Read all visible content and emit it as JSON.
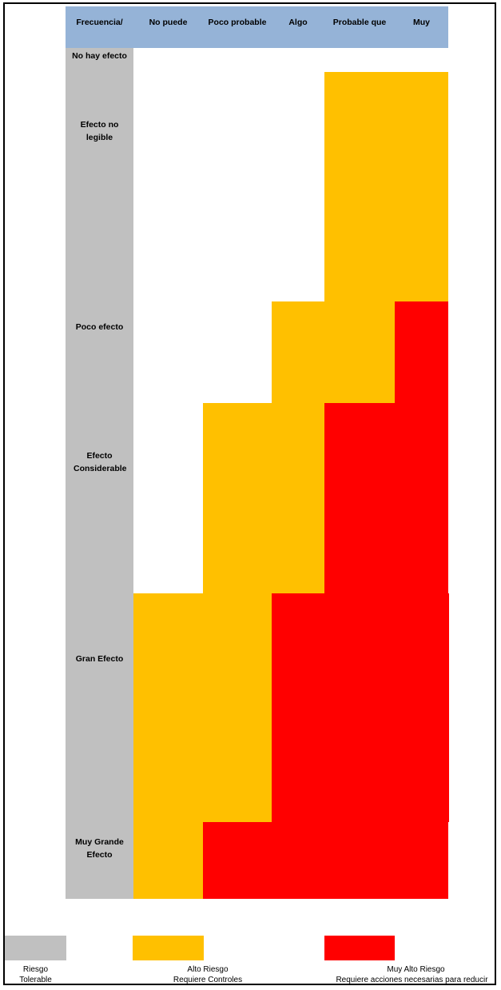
{
  "columns": [
    "Frecuencia/",
    "No puede",
    "Poco probable",
    "Algo",
    "Probable que",
    "Muy"
  ],
  "rows": [
    "No hay efecto",
    "Efecto no legible",
    "Poco efecto",
    "Efecto Considerable",
    "Gran Efecto",
    "Muy Grande Efecto"
  ],
  "colors": {
    "header": "#95b3d7",
    "tolerable": "#c0c0c0",
    "alto": "#ffc000",
    "muy_alto": "#ff0000"
  },
  "legend": {
    "tolerable": {
      "line1": "Riesgo",
      "line2": "Tolerable"
    },
    "alto": {
      "line1": "Alto Riesgo",
      "line2": "Requiere Controles"
    },
    "muy_alto": {
      "line1": "Muy Alto Riesgo",
      "line2": "Requiere acciones necesarias para reducir"
    }
  }
}
